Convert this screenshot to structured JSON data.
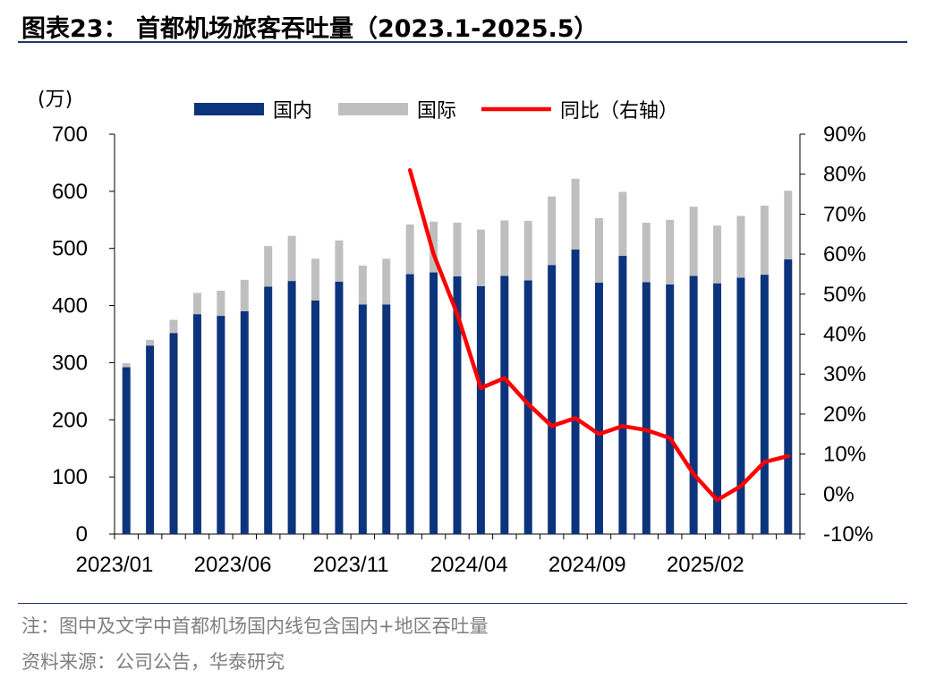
{
  "header": {
    "title": "图表23：  首都机场旅客吞吐量（2023.1-2025.5）"
  },
  "footer": {
    "note": "注：图中及文字中首都机场国内线包含国内+地区吞吐量",
    "source": "资料来源：公司公告，华泰研究"
  },
  "colors": {
    "domestic": "#0c347d",
    "international": "#bfbfbf",
    "yoy": "#ff0000",
    "rule": "#1f3864"
  },
  "chart_data": {
    "type": "bar",
    "stacked": true,
    "left_axis_unit": "(万)",
    "ylim_left": [
      0,
      700
    ],
    "yticks_left": [
      "0",
      "100",
      "200",
      "300",
      "400",
      "500",
      "600",
      "700"
    ],
    "ylim_right": [
      -10,
      90
    ],
    "yticks_right": [
      "-10%",
      "0%",
      "10%",
      "20%",
      "30%",
      "40%",
      "50%",
      "60%",
      "70%",
      "80%",
      "90%"
    ],
    "x_tick_labels": [
      "2023/01",
      "2023/06",
      "2023/11",
      "2024/04",
      "2024/09",
      "2025/02"
    ],
    "legend": {
      "position": "top",
      "domestic": "国内",
      "international": "国际",
      "yoy": "同比（右轴）"
    },
    "categories": [
      "2023/01",
      "2023/02",
      "2023/03",
      "2023/04",
      "2023/05",
      "2023/06",
      "2023/07",
      "2023/08",
      "2023/09",
      "2023/10",
      "2023/11",
      "2023/12",
      "2024/01",
      "2024/02",
      "2024/03",
      "2024/04",
      "2024/05",
      "2024/06",
      "2024/07",
      "2024/08",
      "2024/09",
      "2024/10",
      "2024/11",
      "2024/12",
      "2025/01",
      "2025/02",
      "2025/03",
      "2025/04",
      "2025/05"
    ],
    "series": [
      {
        "name": "国内",
        "type": "bar",
        "axis": "left",
        "values": [
          292,
          330,
          352,
          385,
          382,
          390,
          433,
          443,
          409,
          442,
          402,
          402,
          455,
          458,
          451,
          434,
          452,
          444,
          471,
          498,
          440,
          487,
          441,
          437,
          452,
          439,
          449,
          454,
          481
        ]
      },
      {
        "name": "国际",
        "type": "bar",
        "axis": "left",
        "values": [
          7,
          10,
          23,
          37,
          44,
          55,
          71,
          79,
          73,
          72,
          68,
          80,
          87,
          89,
          94,
          99,
          97,
          104,
          120,
          124,
          113,
          112,
          104,
          113,
          121,
          101,
          108,
          121,
          120
        ]
      },
      {
        "name": "同比（右轴）",
        "type": "line",
        "axis": "right",
        "values": [
          null,
          null,
          null,
          null,
          null,
          null,
          null,
          null,
          null,
          null,
          null,
          null,
          81,
          60,
          45,
          26.5,
          29,
          22.5,
          17,
          19,
          15,
          17,
          16,
          14,
          5,
          -1.5,
          2,
          8,
          9.5
        ]
      }
    ]
  }
}
